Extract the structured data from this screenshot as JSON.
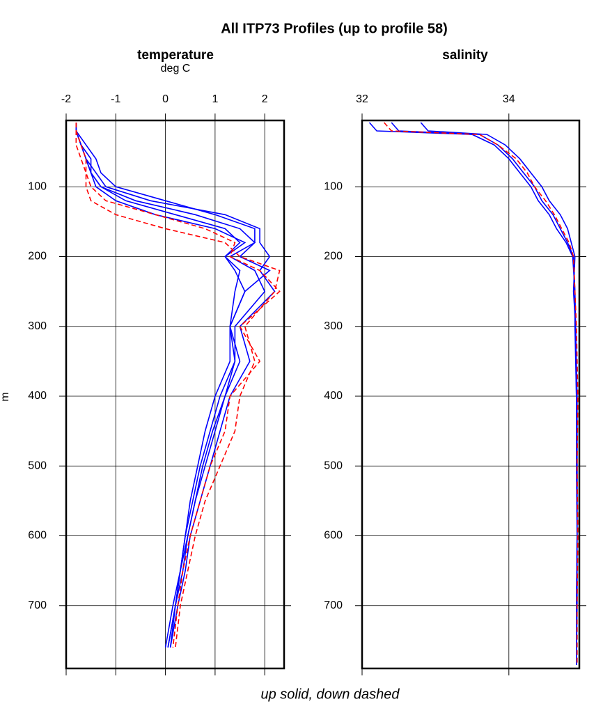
{
  "title": "All ITP73 Profiles (up to profile 58)",
  "caption": "up solid, down dashed",
  "y_label": "m",
  "chart_data": [
    {
      "type": "line",
      "title": "temperature",
      "subtitle": "deg C",
      "xlim": [
        -2,
        2.39
      ],
      "xticks": [
        -2,
        -1,
        0,
        1,
        2
      ],
      "ylim": [
        5,
        790
      ],
      "yticks": [
        100,
        200,
        300,
        400,
        500,
        600,
        700
      ],
      "grid": true,
      "depth": [
        8,
        20,
        40,
        60,
        80,
        100,
        120,
        140,
        160,
        180,
        200,
        220,
        250,
        300,
        350,
        400,
        450,
        500,
        550,
        600,
        650,
        700,
        760
      ],
      "series": [
        {
          "color": "#0000ff",
          "dashed": false,
          "values": [
            -1.8,
            -1.8,
            -1.7,
            -1.6,
            -1.5,
            -1.3,
            -0.6,
            0.6,
            1.5,
            1.8,
            1.3,
            1.8,
            2.0,
            1.4,
            1.4,
            1.1,
            0.9,
            0.7,
            0.55,
            0.4,
            0.3,
            0.2,
            0.05
          ]
        },
        {
          "color": "#0000ff",
          "dashed": false,
          "values": [
            -1.8,
            -1.8,
            -1.6,
            -1.4,
            -1.3,
            -1.0,
            0.0,
            1.0,
            1.8,
            1.8,
            1.5,
            2.1,
            1.6,
            1.3,
            1.5,
            1.2,
            1.0,
            0.8,
            0.6,
            0.45,
            0.35,
            0.2,
            0.1
          ]
        },
        {
          "color": "#0000ff",
          "dashed": false,
          "values": [
            -1.8,
            -1.8,
            -1.7,
            -1.5,
            -1.5,
            -1.4,
            -1.0,
            -0.2,
            1.0,
            1.6,
            1.2,
            1.5,
            1.4,
            1.3,
            1.3,
            1.0,
            0.8,
            0.65,
            0.5,
            0.4,
            0.3,
            0.15,
            0.0
          ]
        },
        {
          "color": "#0000ff",
          "dashed": false,
          "values": [
            -1.8,
            -1.8,
            -1.7,
            -1.6,
            -1.4,
            -1.2,
            -0.3,
            1.2,
            1.9,
            1.9,
            2.1,
            1.9,
            2.2,
            1.5,
            1.7,
            1.3,
            1.1,
            0.9,
            0.7,
            0.5,
            0.4,
            0.25,
            0.1
          ]
        },
        {
          "color": "#0000ff",
          "dashed": false,
          "values": [
            -1.8,
            -1.8,
            -1.7,
            -1.6,
            -1.5,
            -1.3,
            -0.8,
            0.2,
            1.2,
            1.5,
            1.2,
            1.4,
            1.6,
            1.3,
            1.4,
            1.2,
            0.95,
            0.75,
            0.6,
            0.45,
            0.3,
            0.2,
            0.05
          ]
        },
        {
          "color": "#ff0000",
          "dashed": true,
          "values": [
            -1.8,
            -1.8,
            -1.8,
            -1.7,
            -1.6,
            -1.6,
            -1.5,
            -1.0,
            0.0,
            1.2,
            1.5,
            2.3,
            2.2,
            1.6,
            1.8,
            1.5,
            1.4,
            1.1,
            0.8,
            0.6,
            0.45,
            0.3,
            0.2
          ]
        },
        {
          "color": "#ff0000",
          "dashed": true,
          "values": [
            -1.8,
            -1.8,
            -1.7,
            -1.6,
            -1.6,
            -1.5,
            -1.2,
            -0.2,
            0.8,
            1.4,
            1.3,
            1.9,
            2.3,
            1.5,
            1.9,
            1.3,
            1.2,
            0.9,
            0.7,
            0.5,
            0.35,
            0.25,
            0.15
          ]
        }
      ]
    },
    {
      "type": "line",
      "title": "salinity",
      "xlim": [
        32,
        34.96
      ],
      "xticks": [
        32,
        34
      ],
      "ylim": [
        5,
        790
      ],
      "yticks": [
        100,
        200,
        300,
        400,
        500,
        600,
        700
      ],
      "grid": true,
      "depth": [
        8,
        20,
        25,
        40,
        60,
        80,
        100,
        120,
        140,
        160,
        180,
        200,
        250,
        300,
        400,
        500,
        600,
        700,
        785
      ],
      "series": [
        {
          "color": "#0000ff",
          "dashed": false,
          "values": [
            32.4,
            32.5,
            33.6,
            33.85,
            34.05,
            34.2,
            34.35,
            34.45,
            34.6,
            34.7,
            34.8,
            34.88,
            34.9,
            34.91,
            34.92,
            34.93,
            34.93,
            34.92,
            34.92
          ]
        },
        {
          "color": "#0000ff",
          "dashed": false,
          "values": [
            32.8,
            32.9,
            33.7,
            33.95,
            34.15,
            34.3,
            34.45,
            34.55,
            34.7,
            34.8,
            34.85,
            34.9,
            34.88,
            34.91,
            34.93,
            34.93,
            34.93,
            34.93,
            34.92
          ]
        },
        {
          "color": "#0000ff",
          "dashed": false,
          "values": [
            32.1,
            32.2,
            33.5,
            33.8,
            34.0,
            34.15,
            34.3,
            34.4,
            34.55,
            34.65,
            34.78,
            34.87,
            34.9,
            34.9,
            34.92,
            34.92,
            34.93,
            34.92,
            34.92
          ]
        },
        {
          "color": "#ff0000",
          "dashed": true,
          "values": [
            32.3,
            32.4,
            33.6,
            33.85,
            34.1,
            34.25,
            34.35,
            34.5,
            34.62,
            34.72,
            34.82,
            34.88,
            34.9,
            34.92,
            34.94,
            34.93,
            34.94,
            34.93,
            34.93
          ]
        }
      ]
    }
  ]
}
